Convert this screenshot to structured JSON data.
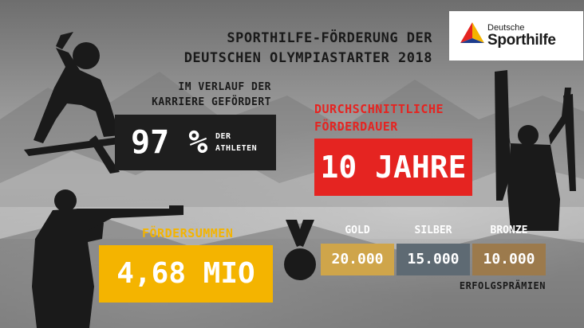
{
  "title": {
    "line1": "SPORTHILFE-FÖRDERUNG DER",
    "line2": "DEUTSCHEN OLYMPIASTARTER 2018"
  },
  "logo": {
    "word1": "Deutsche",
    "word2": "Sporthilfe",
    "colors": [
      "#e52421",
      "#f4b400",
      "#1e3c8c"
    ]
  },
  "career": {
    "label_line1": "IM VERLAUF DER",
    "label_line2": "KARRIERE GEFÖRDERT",
    "value": "97 %",
    "unit_line1": "DER",
    "unit_line2": "ATHLETEN"
  },
  "duration": {
    "label_line1": "DURCHSCHNITTLICHE",
    "label_line2": "FÖRDERDAUER",
    "value": "10 JAHRE"
  },
  "funding": {
    "label": "FÖRDERSUMMEN",
    "value": "4,68 MIO"
  },
  "prizes": {
    "gold_label": "GOLD",
    "gold_value": "20.000",
    "silver_label": "SILBER",
    "silver_value": "15.000",
    "bronze_label": "BRONZE",
    "bronze_value": "10.000",
    "caption": "ERFOLGSPRÄMIEN"
  },
  "colors": {
    "red": "#e52421",
    "yellow": "#f4b400",
    "dark": "#1e1e1e"
  }
}
